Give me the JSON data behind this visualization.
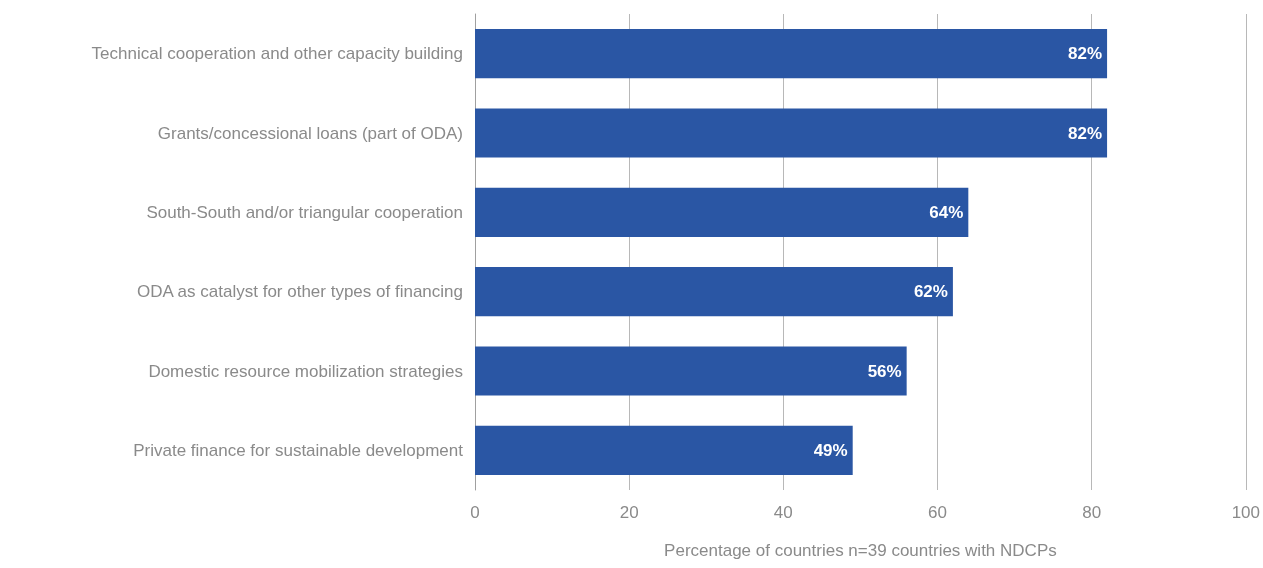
{
  "chart_data": {
    "type": "bar",
    "orientation": "horizontal",
    "categories": [
      "Technical cooperation and other capacity building",
      "Grants/concessional loans (part of ODA)",
      "South-South and/or triangular cooperation",
      "ODA as catalyst for other types of financing",
      "Domestic resource mobilization strategies",
      "Private finance for sustainable development"
    ],
    "values": [
      82,
      82,
      64,
      62,
      56,
      49
    ],
    "value_labels": [
      "82%",
      "82%",
      "64%",
      "62%",
      "56%",
      "49%"
    ],
    "color": "#2a56a4",
    "xlabel": "Percentage of countries n=39 countries with NDCPs",
    "xlim": [
      0,
      100
    ],
    "xticks": [
      0,
      20,
      40,
      60,
      80,
      100
    ],
    "grid": "x"
  }
}
